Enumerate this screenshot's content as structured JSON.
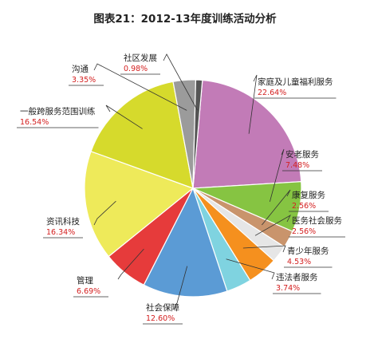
{
  "chart_data": {
    "type": "pie",
    "title": "图表21：2012-13年度训练活动分析",
    "slices": [
      {
        "label": "家庭及儿童福利服务",
        "value": 22.64,
        "value_label": "22.64%",
        "color": "#c27bb7"
      },
      {
        "label": "安老服务",
        "value": 7.48,
        "value_label": "7.48%",
        "color": "#86c442"
      },
      {
        "label": "康复服务",
        "value": 2.56,
        "value_label": "2.56%",
        "color": "#c9946c"
      },
      {
        "label": "医务社会服务",
        "value": 2.56,
        "value_label": "2.56%",
        "color": "#e6e6e6"
      },
      {
        "label": "青少年服务",
        "value": 4.53,
        "value_label": "4.53%",
        "color": "#f5901e"
      },
      {
        "label": "违法者服务",
        "value": 3.74,
        "value_label": "3.74%",
        "color": "#7fd3e0"
      },
      {
        "label": "社会保障",
        "value": 12.6,
        "value_label": "12.60%",
        "color": "#5b9bd5"
      },
      {
        "label": "管理",
        "value": 6.69,
        "value_label": "6.69%",
        "color": "#e63b3b"
      },
      {
        "label": "资讯科技",
        "value": 16.34,
        "value_label": "16.34%",
        "color": "#eeea5a"
      },
      {
        "label": "一般跨服务范围训练",
        "value": 16.54,
        "value_label": "16.54%",
        "color": "#d6da2c"
      },
      {
        "label": "沟通",
        "value": 3.35,
        "value_label": "3.35%",
        "color": "#9b9b9b"
      },
      {
        "label": "社区发展",
        "value": 0.98,
        "value_label": "0.98%",
        "color": "#555555"
      }
    ],
    "legend": "none"
  }
}
